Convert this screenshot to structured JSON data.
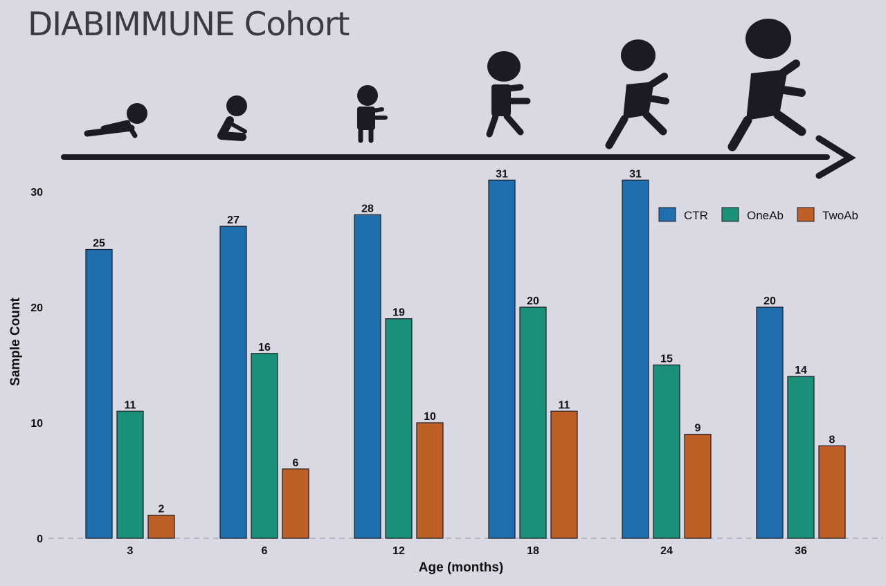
{
  "title": "DIABIMMUNE Cohort",
  "colors": {
    "background": "#d9d9e4",
    "CTR": "#1f6fae",
    "OneAb": "#1b9079",
    "TwoAb": "#bd5f27",
    "timeline": "#1c1b24"
  },
  "icons": [
    "crawling-baby-icon",
    "sitting-baby-icon",
    "standing-toddler-icon",
    "walking-toddler-icon",
    "running-child-icon",
    "running-child-large-icon"
  ],
  "chart_data": {
    "type": "bar",
    "categories": [
      "3",
      "6",
      "12",
      "18",
      "24",
      "36"
    ],
    "series": [
      {
        "name": "CTR",
        "values": [
          25,
          27,
          28,
          31,
          31,
          20
        ]
      },
      {
        "name": "OneAb",
        "values": [
          11,
          16,
          19,
          20,
          15,
          14
        ]
      },
      {
        "name": "TwoAb",
        "values": [
          2,
          6,
          10,
          11,
          9,
          8
        ]
      }
    ],
    "xlabel": "Age (months)",
    "ylabel": "Sample Count",
    "ylim": [
      0,
      31
    ],
    "yticks": [
      0,
      10,
      20,
      30
    ],
    "legend_position": "top-right",
    "grid": false
  }
}
